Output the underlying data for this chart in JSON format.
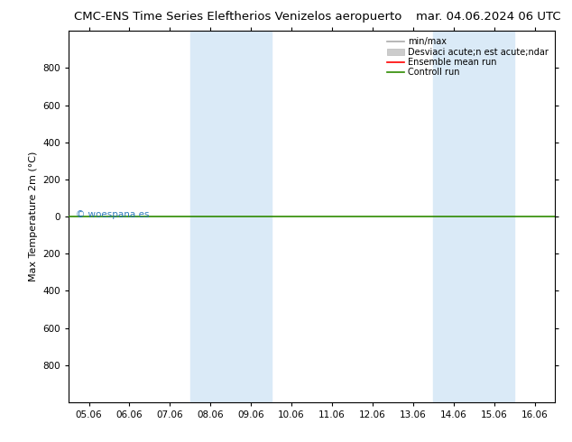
{
  "title_left": "CMC-ENS Time Series Eleftherios Venizelos aeropuerto",
  "title_right": "mar. 04.06.2024 06 UTC",
  "ylabel": "Max Temperature 2m (°C)",
  "bg_color": "#ffffff",
  "plot_bg_color": "#ffffff",
  "ylim_top": -1000,
  "ylim_bottom": 1000,
  "yticks": [
    -800,
    -600,
    -400,
    -200,
    0,
    200,
    400,
    600,
    800
  ],
  "xtick_labels": [
    "05.06",
    "06.06",
    "07.06",
    "08.06",
    "09.06",
    "10.06",
    "11.06",
    "12.06",
    "13.06",
    "14.06",
    "15.06",
    "16.06"
  ],
  "xtick_values": [
    0,
    1,
    2,
    3,
    4,
    5,
    6,
    7,
    8,
    9,
    10,
    11
  ],
  "shaded_bands": [
    {
      "x_start": 3,
      "x_end": 5,
      "color": "#daeaf7"
    },
    {
      "x_start": 9,
      "x_end": 11,
      "color": "#daeaf7"
    }
  ],
  "control_run_y": 0,
  "control_run_color": "#2e8b00",
  "ensemble_mean_color": "#ff0000",
  "minmax_color": "#aaaaaa",
  "std_color": "#cccccc",
  "legend_label_minmax": "min/max",
  "legend_label_std": "Desviaci acute;n est acute;ndar",
  "legend_label_ensemble": "Ensemble mean run",
  "legend_label_control": "Controll run",
  "watermark": "© woespana.es",
  "watermark_color": "#1a6db5",
  "title_fontsize": 9.5,
  "axis_fontsize": 8,
  "tick_fontsize": 7.5,
  "legend_fontsize": 7
}
